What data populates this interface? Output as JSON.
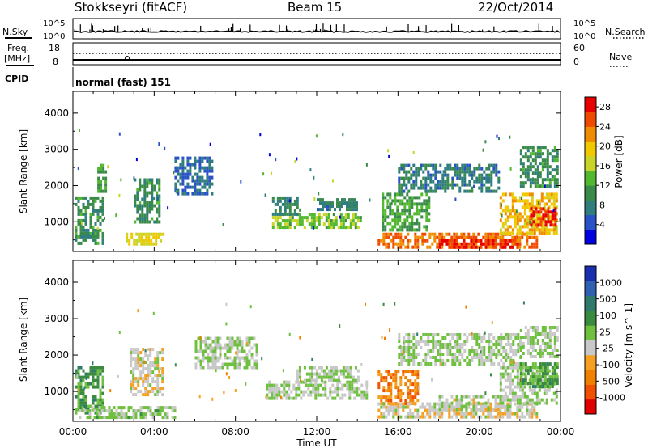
{
  "header": {
    "station": "Stokkseyri (fitACF)",
    "beam": "Beam 15",
    "date": "22/Oct/2014"
  },
  "noise_panel": {
    "left_label": "N.Sky",
    "left_ticks": [
      "10^5",
      "10^0"
    ],
    "right_ticks": [
      "10^5",
      "10^0"
    ],
    "right_label": "N.Search"
  },
  "freq_panel": {
    "left_label_1": "Freq.",
    "left_label_2": "[MHz]",
    "left_ticks": [
      "18",
      "8"
    ],
    "right_ticks": [
      "60",
      "0"
    ],
    "right_label": "Nave",
    "cpid_label": "CPID",
    "cpid_text": "normal (fast) 151"
  },
  "colors": {
    "power": [
      "#0000e0",
      "#2a52c8",
      "#2f7d7d",
      "#3a8a4a",
      "#52b830",
      "#c8d428",
      "#f0c800",
      "#f08c00",
      "#f04a00",
      "#e80000"
    ],
    "velocity": [
      "#1a2fb0",
      "#3060b0",
      "#2f7a6a",
      "#3a8a40",
      "#70c040",
      "#c8c8c8",
      "#f5a020",
      "#f08000",
      "#f05000",
      "#e00000"
    ]
  },
  "chart_data": [
    {
      "type": "heatmap",
      "title": "",
      "xlabel": "Time UT",
      "ylabel": "Slant Range [km]",
      "x_ticks": [
        "00:00",
        "04:00",
        "08:00",
        "12:00",
        "16:00",
        "20:00",
        "00:00"
      ],
      "y_ticks": [
        "1000",
        "2000",
        "3000",
        "4000"
      ],
      "xlim_hours": [
        0,
        24
      ],
      "ylim_km": [
        180,
        4600
      ],
      "colorbar": {
        "label": "Power [dB]",
        "ticks": [
          "4",
          "8",
          "12",
          "16",
          "20",
          "24",
          "28"
        ],
        "range": [
          0,
          30
        ]
      },
      "regions": [
        {
          "t": [
            0.1,
            1.5
          ],
          "r": [
            400,
            1700
          ],
          "value": 10
        },
        {
          "t": [
            1.2,
            1.6
          ],
          "r": [
            1800,
            2600
          ],
          "value": 12
        },
        {
          "t": [
            2.6,
            4.4
          ],
          "r": [
            350,
            700
          ],
          "value": 18
        },
        {
          "t": [
            3.0,
            4.3
          ],
          "r": [
            1000,
            2200
          ],
          "value": 10
        },
        {
          "t": [
            5.0,
            6.8
          ],
          "r": [
            1800,
            2800
          ],
          "value": 6
        },
        {
          "t": [
            9.8,
            14.2
          ],
          "r": [
            850,
            1250
          ],
          "value": 14
        },
        {
          "t": [
            9.8,
            11.0
          ],
          "r": [
            1250,
            1700
          ],
          "value": 9
        },
        {
          "t": [
            12.0,
            14.0
          ],
          "r": [
            1350,
            1650
          ],
          "value": 8
        },
        {
          "t": [
            15.0,
            22.8
          ],
          "r": [
            320,
            700
          ],
          "value": 24
        },
        {
          "t": [
            18.0,
            22.0
          ],
          "r": [
            300,
            520
          ],
          "value": 28
        },
        {
          "t": [
            15.2,
            17.5
          ],
          "r": [
            800,
            1800
          ],
          "value": 12
        },
        {
          "t": [
            16.0,
            21.0
          ],
          "r": [
            1800,
            2600
          ],
          "value": 8
        },
        {
          "t": [
            21.0,
            23.8
          ],
          "r": [
            700,
            1800
          ],
          "value": 20
        },
        {
          "t": [
            22.5,
            23.7
          ],
          "r": [
            900,
            1400
          ],
          "value": 27
        },
        {
          "t": [
            22.0,
            23.9
          ],
          "r": [
            2000,
            3100
          ],
          "value": 10
        }
      ]
    },
    {
      "type": "heatmap",
      "title": "",
      "xlabel": "Time UT",
      "ylabel": "Slant Range [km]",
      "x_ticks": [
        "00:00",
        "04:00",
        "08:00",
        "12:00",
        "16:00",
        "20:00",
        "00:00"
      ],
      "y_ticks": [
        "1000",
        "2000",
        "3000",
        "4000"
      ],
      "xlim_hours": [
        0,
        24
      ],
      "ylim_km": [
        180,
        4600
      ],
      "colorbar": {
        "label": "Velocity [m s^-1]",
        "ticks": [
          "1000",
          "500",
          "100",
          "25",
          "-25",
          "-100",
          "-500",
          "-1000"
        ],
        "range": [
          -1200,
          1200
        ]
      },
      "regions": [
        {
          "t": [
            0.1,
            1.5
          ],
          "r": [
            400,
            1700
          ],
          "value": 300
        },
        {
          "t": [
            0.3,
            5.0
          ],
          "r": [
            300,
            600
          ],
          "value": 60
        },
        {
          "t": [
            2.8,
            4.4
          ],
          "r": [
            900,
            2200
          ],
          "value": -150
        },
        {
          "t": [
            6.0,
            9.0
          ],
          "r": [
            1700,
            2500
          ],
          "value": 0
        },
        {
          "t": [
            9.5,
            14.5
          ],
          "r": [
            850,
            1300
          ],
          "value": 0
        },
        {
          "t": [
            11.0,
            14.0
          ],
          "r": [
            1300,
            1700
          ],
          "value": 0
        },
        {
          "t": [
            15.0,
            17.0
          ],
          "r": [
            700,
            1600
          ],
          "value": -600
        },
        {
          "t": [
            15.0,
            22.8
          ],
          "r": [
            320,
            700
          ],
          "value": -150
        },
        {
          "t": [
            18.0,
            21.5
          ],
          "r": [
            500,
            900
          ],
          "value": -60
        },
        {
          "t": [
            16.0,
            22.0
          ],
          "r": [
            1800,
            2600
          ],
          "value": 0
        },
        {
          "t": [
            21.0,
            23.8
          ],
          "r": [
            700,
            1700
          ],
          "value": 0
        },
        {
          "t": [
            22.0,
            23.9
          ],
          "r": [
            1100,
            1800
          ],
          "value": 300
        },
        {
          "t": [
            22.0,
            23.9
          ],
          "r": [
            2000,
            2800
          ],
          "value": 20
        }
      ]
    }
  ]
}
